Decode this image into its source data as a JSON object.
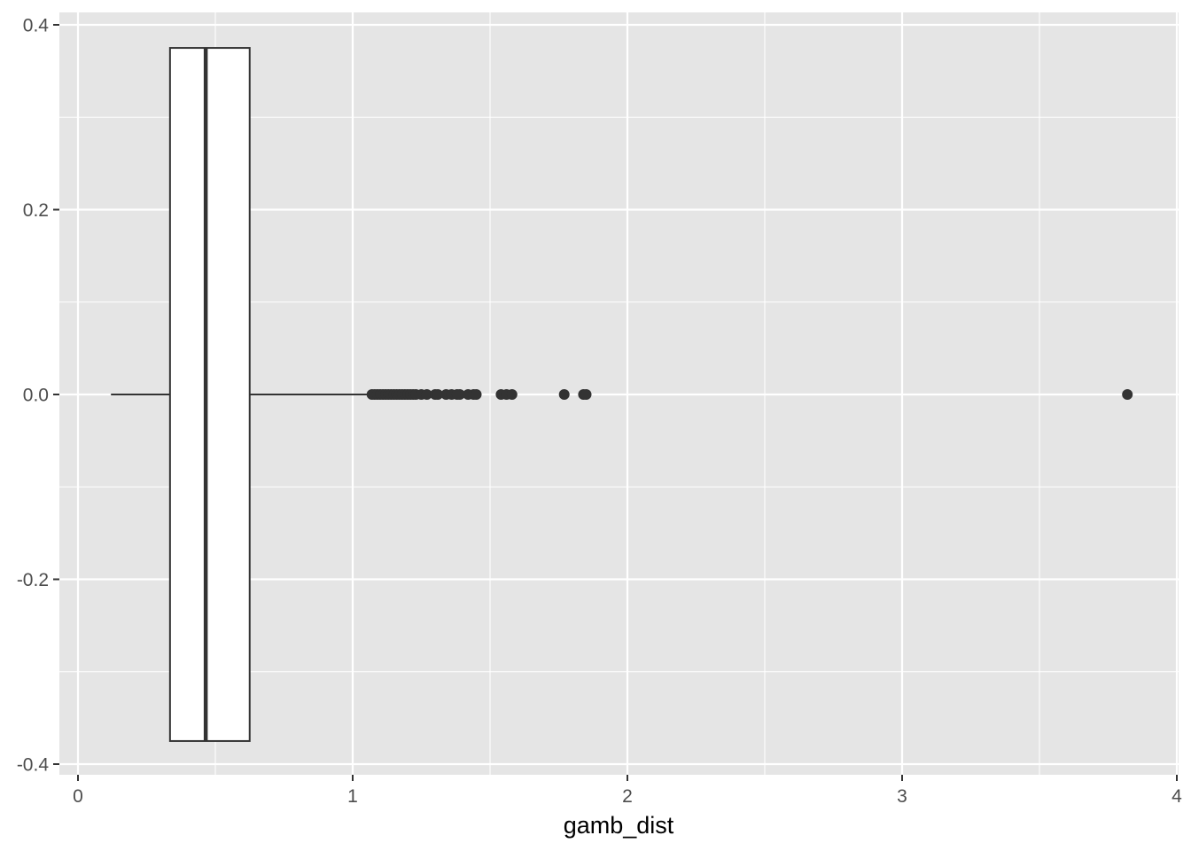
{
  "chart_data": {
    "type": "boxplot",
    "orientation": "horizontal",
    "xlabel": "gamb_dist",
    "ylabel": "",
    "xlim": [
      0,
      4
    ],
    "ylim": [
      -0.4,
      0.4
    ],
    "x_ticks": [
      0,
      1,
      2,
      3,
      4
    ],
    "x_tick_labels": [
      "0",
      "1",
      "2",
      "3",
      "4"
    ],
    "y_ticks": [
      -0.4,
      -0.2,
      0.0,
      0.2,
      0.4
    ],
    "y_tick_labels": [
      "-0.4",
      "-0.2",
      "0.0",
      "0.2",
      "0.4"
    ],
    "grid": true,
    "box": {
      "whisker_low": 0.12,
      "q1": 0.335,
      "median": 0.465,
      "q3": 0.625,
      "whisker_high": 1.07,
      "y_center": 0.0,
      "half_width": 0.375
    },
    "outliers": [
      1.07,
      1.08,
      1.09,
      1.1,
      1.11,
      1.12,
      1.13,
      1.14,
      1.15,
      1.16,
      1.17,
      1.18,
      1.19,
      1.2,
      1.21,
      1.22,
      1.23,
      1.25,
      1.27,
      1.3,
      1.31,
      1.34,
      1.36,
      1.38,
      1.39,
      1.42,
      1.44,
      1.45,
      1.54,
      1.56,
      1.58,
      1.77,
      1.84,
      1.85,
      3.82
    ],
    "colors": {
      "panel_background": "#e5e5e5",
      "grid": "#ffffff",
      "box_fill": "#ffffff",
      "box_line": "#333333",
      "points": "#333333",
      "tick_text": "#4d4d4d",
      "tick_mark": "#333333"
    }
  }
}
